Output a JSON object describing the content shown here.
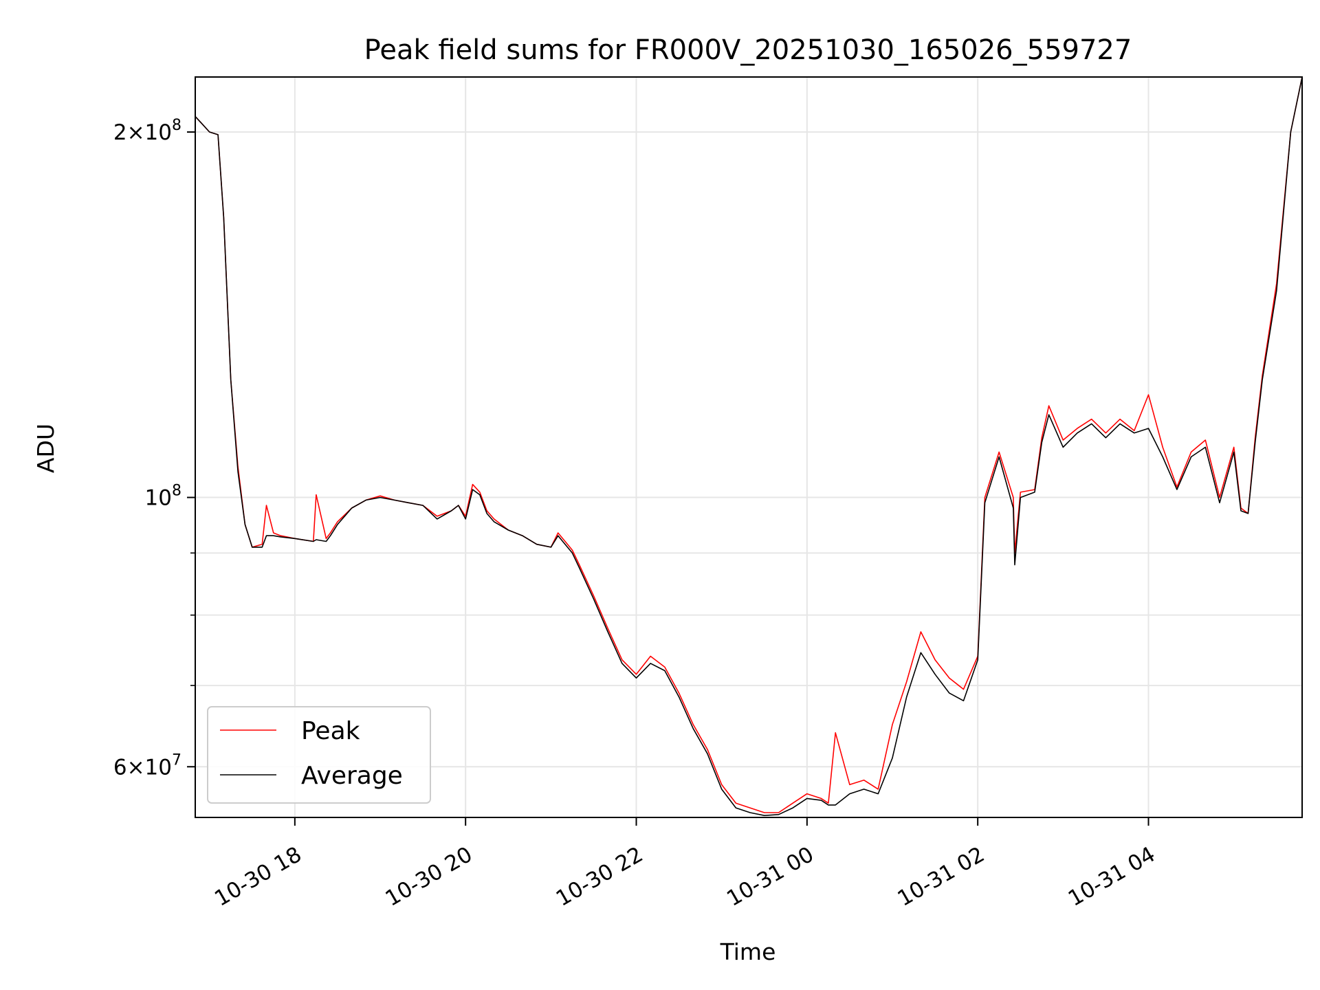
{
  "chart_data": {
    "type": "line",
    "title": "Peak field sums for FR000V_20251030_165026_559727",
    "xlabel": "Time",
    "ylabel": "ADU",
    "yscale": "log",
    "xlim": [
      "2025-10-30 16:50",
      "2025-10-31 05:48"
    ],
    "ylim": [
      54500000,
      222000000
    ],
    "grid": true,
    "legend_position": "lower-left",
    "x_ticks": [
      {
        "value": "2025-10-30 18:00",
        "label": "10-30 18"
      },
      {
        "value": "2025-10-30 20:00",
        "label": "10-30 20"
      },
      {
        "value": "2025-10-30 22:00",
        "label": "10-30 22"
      },
      {
        "value": "2025-10-31 00:00",
        "label": "10-31 00"
      },
      {
        "value": "2025-10-31 02:00",
        "label": "10-31 02"
      },
      {
        "value": "2025-10-31 04:00",
        "label": "10-31 04"
      }
    ],
    "y_major_ticks": [
      {
        "value": 60000000,
        "mantissa": "6",
        "exponent": "7"
      },
      {
        "value": 100000000,
        "mantissa": "",
        "exponent": "8"
      },
      {
        "value": 200000000,
        "mantissa": "2",
        "exponent": "8"
      }
    ],
    "y_minor_ticks": [
      70000000,
      80000000,
      90000000
    ],
    "series": [
      {
        "name": "Peak",
        "color": "#ff0000",
        "x": [
          "2025-10-30 16:50",
          "2025-10-30 16:55",
          "2025-10-30 17:00",
          "2025-10-30 17:06",
          "2025-10-30 17:10",
          "2025-10-30 17:15",
          "2025-10-30 17:20",
          "2025-10-30 17:25",
          "2025-10-30 17:30",
          "2025-10-30 17:37",
          "2025-10-30 17:40",
          "2025-10-30 17:45",
          "2025-10-30 17:50",
          "2025-10-30 18:00",
          "2025-10-30 18:13",
          "2025-10-30 18:15",
          "2025-10-30 18:22",
          "2025-10-30 18:25",
          "2025-10-30 18:30",
          "2025-10-30 18:40",
          "2025-10-30 18:50",
          "2025-10-30 19:00",
          "2025-10-30 19:10",
          "2025-10-30 19:20",
          "2025-10-30 19:30",
          "2025-10-30 19:40",
          "2025-10-30 19:50",
          "2025-10-30 19:55",
          "2025-10-30 20:00",
          "2025-10-30 20:05",
          "2025-10-30 20:10",
          "2025-10-30 20:15",
          "2025-10-30 20:20",
          "2025-10-30 20:30",
          "2025-10-30 20:40",
          "2025-10-30 20:50",
          "2025-10-30 21:00",
          "2025-10-30 21:05",
          "2025-10-30 21:10",
          "2025-10-30 21:15",
          "2025-10-30 21:20",
          "2025-10-30 21:30",
          "2025-10-30 21:40",
          "2025-10-30 21:50",
          "2025-10-30 22:00",
          "2025-10-30 22:10",
          "2025-10-30 22:20",
          "2025-10-30 22:30",
          "2025-10-30 22:40",
          "2025-10-30 22:50",
          "2025-10-30 23:00",
          "2025-10-30 23:10",
          "2025-10-30 23:20",
          "2025-10-30 23:30",
          "2025-10-30 23:40",
          "2025-10-30 23:50",
          "2025-10-31 00:00",
          "2025-10-31 00:10",
          "2025-10-31 00:15",
          "2025-10-31 00:20",
          "2025-10-31 00:30",
          "2025-10-31 00:40",
          "2025-10-31 00:50",
          "2025-10-31 01:00",
          "2025-10-31 01:10",
          "2025-10-31 01:20",
          "2025-10-31 01:30",
          "2025-10-31 01:40",
          "2025-10-31 01:50",
          "2025-10-31 02:00",
          "2025-10-31 02:05",
          "2025-10-31 02:15",
          "2025-10-31 02:25",
          "2025-10-31 02:26",
          "2025-10-31 02:30",
          "2025-10-31 02:40",
          "2025-10-31 02:45",
          "2025-10-31 02:50",
          "2025-10-31 03:00",
          "2025-10-31 03:10",
          "2025-10-31 03:20",
          "2025-10-31 03:30",
          "2025-10-31 03:40",
          "2025-10-31 03:50",
          "2025-10-31 04:00",
          "2025-10-31 04:10",
          "2025-10-31 04:20",
          "2025-10-31 04:30",
          "2025-10-31 04:40",
          "2025-10-31 04:50",
          "2025-10-31 05:00",
          "2025-10-31 05:05",
          "2025-10-31 05:10",
          "2025-10-31 05:15",
          "2025-10-31 05:20",
          "2025-10-31 05:30",
          "2025-10-31 05:40",
          "2025-10-31 05:48"
        ],
        "y": [
          206000000,
          203000000,
          200000000,
          199000000,
          170000000,
          125000000,
          106000000,
          95000000,
          91000000,
          91500000,
          98500000,
          93500000,
          93000000,
          92500000,
          92000000,
          100500000,
          92500000,
          93500000,
          95500000,
          98000000,
          99500000,
          100300000,
          99500000,
          99000000,
          98500000,
          96500000,
          97500000,
          98500000,
          96500000,
          102500000,
          101000000,
          97500000,
          96000000,
          94000000,
          93000000,
          91500000,
          91000000,
          93500000,
          92000000,
          90500000,
          88000000,
          83000000,
          78000000,
          73500000,
          71500000,
          74000000,
          72500000,
          69000000,
          65000000,
          62000000,
          58000000,
          56000000,
          55500000,
          55000000,
          55000000,
          56000000,
          57000000,
          56500000,
          56000000,
          64000000,
          58000000,
          58500000,
          57500000,
          65000000,
          70500000,
          77500000,
          73500000,
          71000000,
          69500000,
          74000000,
          100000000,
          109000000,
          100000000,
          90000000,
          101000000,
          101500000,
          112000000,
          119000000,
          111500000,
          114000000,
          116000000,
          113000000,
          116000000,
          113500000,
          121500000,
          110000000,
          102000000,
          109000000,
          111500000,
          100000000,
          110000000,
          98000000,
          97000000,
          112000000,
          126000000,
          150000000,
          200000000,
          222000000
        ]
      },
      {
        "name": "Average",
        "color": "#000000",
        "x": [
          "2025-10-30 16:50",
          "2025-10-30 16:55",
          "2025-10-30 17:00",
          "2025-10-30 17:06",
          "2025-10-30 17:10",
          "2025-10-30 17:15",
          "2025-10-30 17:20",
          "2025-10-30 17:25",
          "2025-10-30 17:30",
          "2025-10-30 17:37",
          "2025-10-30 17:40",
          "2025-10-30 17:45",
          "2025-10-30 17:50",
          "2025-10-30 18:00",
          "2025-10-30 18:13",
          "2025-10-30 18:15",
          "2025-10-30 18:22",
          "2025-10-30 18:25",
          "2025-10-30 18:30",
          "2025-10-30 18:40",
          "2025-10-30 18:50",
          "2025-10-30 19:00",
          "2025-10-30 19:10",
          "2025-10-30 19:20",
          "2025-10-30 19:30",
          "2025-10-30 19:40",
          "2025-10-30 19:50",
          "2025-10-30 19:55",
          "2025-10-30 20:00",
          "2025-10-30 20:05",
          "2025-10-30 20:10",
          "2025-10-30 20:15",
          "2025-10-30 20:20",
          "2025-10-30 20:30",
          "2025-10-30 20:40",
          "2025-10-30 20:50",
          "2025-10-30 21:00",
          "2025-10-30 21:05",
          "2025-10-30 21:10",
          "2025-10-30 21:15",
          "2025-10-30 21:20",
          "2025-10-30 21:30",
          "2025-10-30 21:40",
          "2025-10-30 21:50",
          "2025-10-30 22:00",
          "2025-10-30 22:10",
          "2025-10-30 22:20",
          "2025-10-30 22:30",
          "2025-10-30 22:40",
          "2025-10-30 22:50",
          "2025-10-30 23:00",
          "2025-10-30 23:10",
          "2025-10-30 23:20",
          "2025-10-30 23:30",
          "2025-10-30 23:40",
          "2025-10-30 23:50",
          "2025-10-31 00:00",
          "2025-10-31 00:10",
          "2025-10-31 00:15",
          "2025-10-31 00:20",
          "2025-10-31 00:30",
          "2025-10-31 00:40",
          "2025-10-31 00:50",
          "2025-10-31 01:00",
          "2025-10-31 01:10",
          "2025-10-31 01:20",
          "2025-10-31 01:30",
          "2025-10-31 01:40",
          "2025-10-31 01:50",
          "2025-10-31 02:00",
          "2025-10-31 02:05",
          "2025-10-31 02:15",
          "2025-10-31 02:25",
          "2025-10-31 02:26",
          "2025-10-31 02:30",
          "2025-10-31 02:40",
          "2025-10-31 02:45",
          "2025-10-31 02:50",
          "2025-10-31 03:00",
          "2025-10-31 03:10",
          "2025-10-31 03:20",
          "2025-10-31 03:30",
          "2025-10-31 03:40",
          "2025-10-31 03:50",
          "2025-10-31 04:00",
          "2025-10-31 04:10",
          "2025-10-31 04:20",
          "2025-10-31 04:30",
          "2025-10-31 04:40",
          "2025-10-31 04:50",
          "2025-10-31 05:00",
          "2025-10-31 05:05",
          "2025-10-31 05:10",
          "2025-10-31 05:15",
          "2025-10-31 05:20",
          "2025-10-31 05:30",
          "2025-10-31 05:40",
          "2025-10-31 05:48"
        ],
        "y": [
          206000000,
          203000000,
          200000000,
          199000000,
          170000000,
          125000000,
          105000000,
          95000000,
          91000000,
          91000000,
          93000000,
          93000000,
          92800000,
          92500000,
          92000000,
          92300000,
          92000000,
          93000000,
          95000000,
          98000000,
          99500000,
          100000000,
          99500000,
          99000000,
          98500000,
          96000000,
          97500000,
          98500000,
          96000000,
          101500000,
          100500000,
          97000000,
          95500000,
          94000000,
          93000000,
          91500000,
          91000000,
          93000000,
          91500000,
          90000000,
          87500000,
          82500000,
          77500000,
          73000000,
          71000000,
          73000000,
          72000000,
          68500000,
          64500000,
          61500000,
          57500000,
          55500000,
          55000000,
          54700000,
          54800000,
          55500000,
          56500000,
          56300000,
          55800000,
          55800000,
          57000000,
          57500000,
          57000000,
          61000000,
          68500000,
          74500000,
          71500000,
          69000000,
          68000000,
          73500000,
          99000000,
          108000000,
          98000000,
          88000000,
          100000000,
          101000000,
          111000000,
          117000000,
          110000000,
          113000000,
          115000000,
          112000000,
          115000000,
          113000000,
          114000000,
          108000000,
          101500000,
          108000000,
          110000000,
          99000000,
          109000000,
          97500000,
          97000000,
          111000000,
          125000000,
          148000000,
          200000000,
          222000000
        ]
      }
    ]
  }
}
